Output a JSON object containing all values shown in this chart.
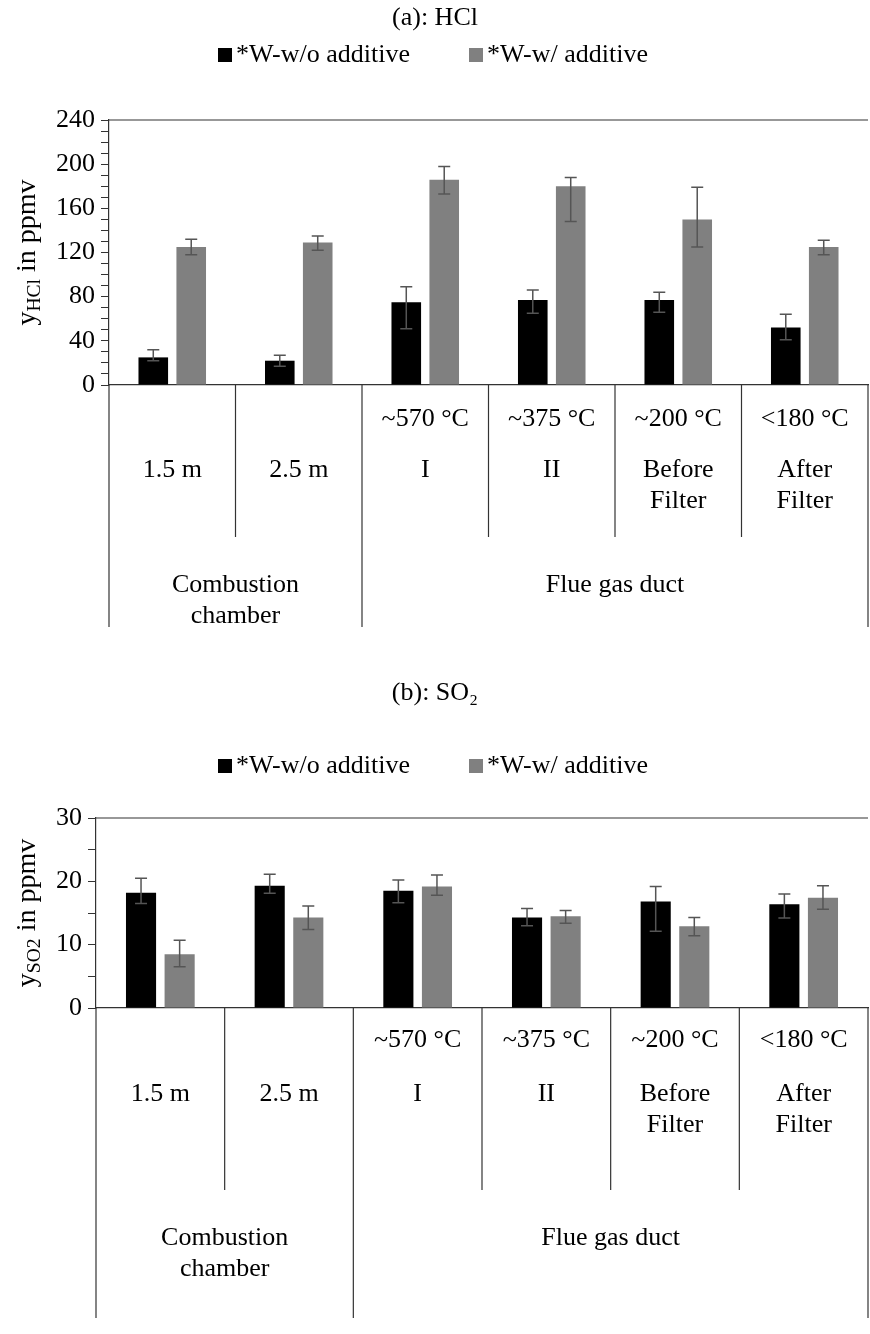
{
  "chart_data": [
    {
      "type": "bar",
      "title": "(a): HCl",
      "ylabel": "y$_{HCl}$ in ppmv",
      "categories": [
        "\n1.5 m",
        "\n2.5 m",
        "~570 °C\nI",
        "~375 °C\nII",
        "~200 °C\nBefore\nFilter",
        "<180 °C\nAfter\nFilter"
      ],
      "series": [
        {
          "name": "*W-w/o additive",
          "color": "#000000",
          "values": [
            25,
            22,
            75,
            77,
            77,
            52
          ],
          "errors": [
            [
              22,
              32
            ],
            [
              17,
              27
            ],
            [
              51,
              89
            ],
            [
              65,
              86
            ],
            [
              66,
              84
            ],
            [
              41,
              64
            ]
          ]
        },
        {
          "name": "*W-w/ additive",
          "color": "#808080",
          "values": [
            125,
            129,
            186,
            180,
            150,
            125
          ],
          "errors": [
            [
              118,
              132
            ],
            [
              122,
              135
            ],
            [
              173,
              198
            ],
            [
              148,
              188
            ],
            [
              125,
              179
            ],
            [
              118,
              131
            ]
          ]
        }
      ],
      "ylim": [
        0,
        240
      ],
      "yticks": [
        0,
        {
          "value": 10,
          "label": null
        },
        {
          "value": 20,
          "label": null
        },
        {
          "value": 30,
          "label": null
        },
        40,
        {
          "value": 50,
          "label": null
        },
        {
          "value": 60,
          "label": null
        },
        {
          "value": 70,
          "label": null
        },
        80,
        {
          "value": 90,
          "label": null
        },
        {
          "value": 100,
          "label": null
        },
        {
          "value": 110,
          "label": null
        },
        120,
        {
          "value": 130,
          "label": null
        },
        {
          "value": 140,
          "label": null
        },
        {
          "value": 150,
          "label": null
        },
        160,
        {
          "value": 170,
          "label": null
        },
        {
          "value": 180,
          "label": null
        },
        {
          "value": 190,
          "label": null
        },
        200,
        {
          "value": 210,
          "label": null
        },
        {
          "value": 220,
          "label": null
        },
        {
          "value": 230,
          "label": null
        },
        240
      ],
      "legend": "top",
      "grid": false,
      "annotations": [
        "Combustion chamber",
        "Flue gas duct"
      ]
    },
    {
      "type": "bar",
      "title": "(b): SO₂",
      "ylabel": "y$_{SO2}$ in ppmv",
      "categories": [
        "\n1.5 m",
        "\n2.5 m",
        "~570 °C\nI",
        "~375 °C\nII",
        "~200 °C\nBefore\nFilter",
        "<180 °C\nAfter\nFilter"
      ],
      "series": [
        {
          "name": "*W-w/o additive",
          "color": "#000000",
          "values": [
            18.2,
            19.3,
            18.5,
            14.3,
            16.8,
            16.4
          ],
          "errors": [
            [
              16.5,
              20.5
            ],
            [
              18.1,
              21.1
            ],
            [
              16.6,
              20.2
            ],
            [
              13.0,
              15.7
            ],
            [
              12.1,
              19.2
            ],
            [
              14.2,
              18.0
            ]
          ]
        },
        {
          "name": "*W-w/ additive",
          "color": "#808080",
          "values": [
            8.5,
            14.3,
            19.2,
            14.5,
            12.9,
            17.4
          ],
          "errors": [
            [
              6.5,
              10.7
            ],
            [
              12.4,
              16.1
            ],
            [
              17.8,
              21.0
            ],
            [
              13.4,
              15.4
            ],
            [
              11.4,
              14.3
            ],
            [
              15.6,
              19.3
            ]
          ]
        }
      ],
      "ylim": [
        0,
        30
      ],
      "yticks": [
        0,
        {
          "value": 5,
          "label": null
        },
        10,
        {
          "value": 15,
          "label": null
        },
        20,
        {
          "value": 25,
          "label": null
        },
        30
      ],
      "legend": "top",
      "grid": false,
      "annotations": [
        "Combustion chamber",
        "Flue gas duct"
      ]
    }
  ]
}
